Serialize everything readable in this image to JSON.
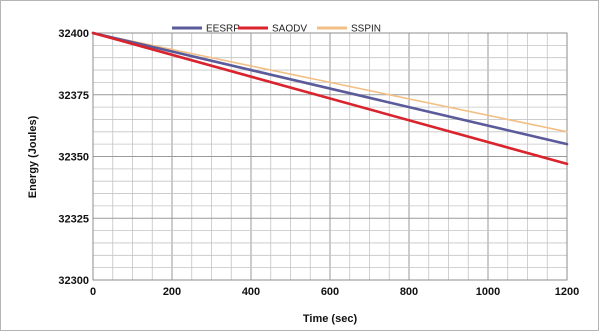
{
  "chart_data": {
    "type": "line",
    "title": "",
    "xlabel": "Time (sec)",
    "ylabel": "Energy (Joules)",
    "xlim": [
      0,
      1200
    ],
    "ylim": [
      32300,
      32400
    ],
    "x_ticks": [
      0,
      200,
      400,
      600,
      800,
      1000,
      1200
    ],
    "y_ticks": [
      32300,
      32325,
      32350,
      32375,
      32400
    ],
    "grid": true,
    "legend_position": "top-center",
    "x": [
      0,
      1200
    ],
    "series": [
      {
        "name": "EESRP",
        "color": "#5b5b9b",
        "values": [
          32400,
          32355
        ]
      },
      {
        "name": "SAODV",
        "color": "#d9232d",
        "values": [
          32400,
          32347
        ]
      },
      {
        "name": "SSPIN",
        "color": "#f2bf84",
        "values": [
          32400,
          32360
        ]
      }
    ]
  }
}
